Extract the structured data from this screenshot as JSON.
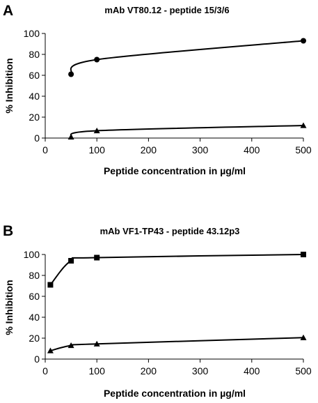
{
  "chart_data": [
    {
      "type": "line",
      "panel_label": "A",
      "title": "mAb VT80.12 - peptide 15/3/6",
      "xlabel": "Peptide concentration in µg/ml",
      "ylabel": "% Inhibition",
      "xlim": [
        0,
        500
      ],
      "ylim": [
        0,
        100
      ],
      "xticks": [
        0,
        100,
        200,
        300,
        400,
        500
      ],
      "yticks": [
        0,
        20,
        40,
        60,
        80,
        100
      ],
      "grid": false,
      "series": [
        {
          "marker": "circle",
          "x": [
            50,
            100,
            500
          ],
          "values": [
            61,
            75,
            93
          ]
        },
        {
          "marker": "triangle",
          "x": [
            50,
            100,
            500
          ],
          "values": [
            1,
            7,
            12
          ]
        }
      ]
    },
    {
      "type": "line",
      "panel_label": "B",
      "title": "mAb VF1-TP43 - peptide 43.12p3",
      "xlabel": "Peptide concentration in µg/ml",
      "ylabel": "% Inhibition",
      "xlim": [
        0,
        500
      ],
      "ylim": [
        0,
        100
      ],
      "xticks": [
        0,
        100,
        200,
        300,
        400,
        500
      ],
      "yticks": [
        0,
        20,
        40,
        60,
        80,
        100
      ],
      "grid": false,
      "series": [
        {
          "marker": "square",
          "x": [
            10,
            50,
            100,
            500
          ],
          "values": [
            71,
            94,
            97,
            100
          ]
        },
        {
          "marker": "triangle",
          "x": [
            10,
            50,
            100,
            500
          ],
          "values": [
            8,
            13,
            14.5,
            20.5
          ]
        }
      ]
    }
  ]
}
